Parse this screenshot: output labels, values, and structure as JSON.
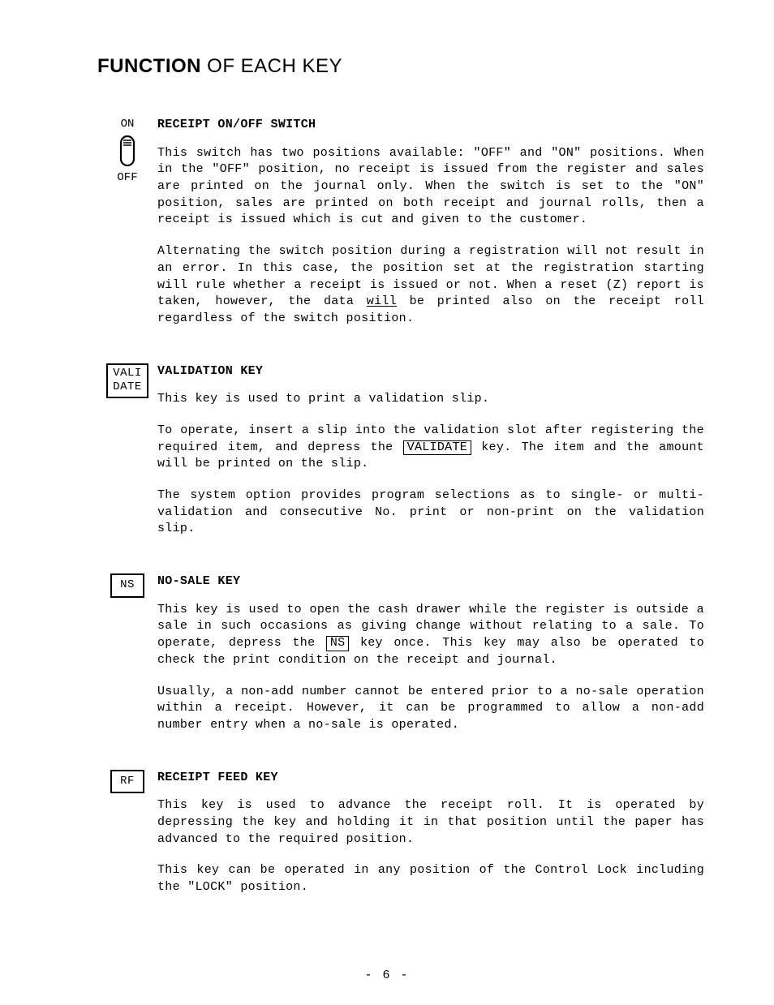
{
  "pageTitle": {
    "part1": "FUNCTION ",
    "part2": "OF EACH KEY"
  },
  "sections": [
    {
      "id": "receipt-switch",
      "keyTop": "ON",
      "keyBottom": "OFF",
      "heading": "RECEIPT ON/OFF SWITCH",
      "paragraphs": [
        "This switch has two positions available:  \"OFF\" and \"ON\" positions. When in the \"OFF\" position, no receipt is issued from the register and sales are printed on the journal only.  When the switch is set to the \"ON\" position, sales are printed on both receipt and journal rolls, then a receipt is issued which is cut and given to the customer.",
        "Alternating the switch position during a registration will not result in an error.  In this case, the position set at the registration starting will rule whether a receipt is issued or not.  When a reset (Z) report is taken, however, the data {u:will} be printed also on the receipt roll regardless of the switch position."
      ]
    },
    {
      "id": "validation-key",
      "keyBox": "VALI\nDATE",
      "heading": "VALIDATION KEY",
      "paragraphs": [
        "This key is used to print a validation slip.",
        "To operate, insert a slip into the validation slot after registering the required item, and depress the {k:VALIDATE} key.  The item and the amount will be printed on the slip.",
        "The system option provides program selections as to single- or multi-validation and consecutive No. print or non-print on the validation slip."
      ]
    },
    {
      "id": "no-sale-key",
      "keyBox": "NS",
      "heading": "NO-SALE KEY",
      "paragraphs": [
        "This key is used to open the cash drawer while the register is outside a sale in such occasions as giving change without relating to a sale. To operate, depress the {k:NS} key once.  This key may also be operated to check the print condition on the receipt and journal.",
        "Usually, a non-add number cannot be entered prior to a no-sale operation within a receipt.  However, it can be programmed to allow a non-add number entry when a no-sale is operated."
      ]
    },
    {
      "id": "receipt-feed-key",
      "keyBox": "RF",
      "heading": "RECEIPT FEED KEY",
      "paragraphs": [
        "This key is used to advance the receipt roll.  It is operated by depressing the key and holding it in that position until the paper has advanced to the required position.",
        "This key can be operated in any position of the Control Lock including the \"LOCK\" position."
      ]
    }
  ],
  "pageNumber": "- 6 -",
  "style": {
    "background": "#ffffff",
    "text": "#000000",
    "bodyFontSize": 15,
    "titleFontSize": 24
  }
}
